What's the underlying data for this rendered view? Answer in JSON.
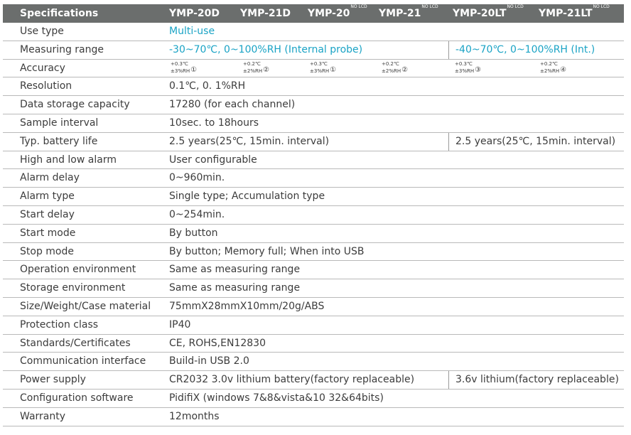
{
  "header": {
    "title": "Specifications",
    "models": [
      "YMP-20D",
      "YMP-21D",
      "YMP-20",
      "YMP-21",
      "YMP-20LT",
      "YMP-21LT"
    ],
    "model_notes": [
      "",
      "",
      "NO LCD",
      "NO LCD",
      "NO LCD",
      "NO LCD"
    ]
  },
  "accuracy": [
    {
      "temp": "+0.3℃",
      "rh": "±3%RH",
      "note": "①"
    },
    {
      "temp": "+0.2℃",
      "rh": "±2%RH",
      "note": "②"
    },
    {
      "temp": "+0.3℃",
      "rh": "±3%RH",
      "note": "①"
    },
    {
      "temp": "+0.2℃",
      "rh": "±2%RH",
      "note": "②"
    },
    {
      "temp": "+0.3℃",
      "rh": "±3%RH",
      "note": "③"
    },
    {
      "temp": "+0.2℃",
      "rh": "±2%RH",
      "note": "④"
    }
  ],
  "rows": [
    {
      "label": "Use type",
      "value": "Multi-use",
      "value2": ""
    },
    {
      "label": "Measuring range",
      "value": "-30~70℃, 0~100%RH (Internal probe)",
      "value2": "-40~70℃, 0~100%RH (Int.)"
    },
    {
      "label": "Accuracy",
      "value": "",
      "value2": ""
    },
    {
      "label": "Resolution",
      "value": "0.1℃, 0. 1%RH",
      "value2": ""
    },
    {
      "label": "Data storage capacity",
      "value": "17280 (for each channel)",
      "value2": ""
    },
    {
      "label": "Sample interval",
      "value": "10sec. to 18hours",
      "value2": ""
    },
    {
      "label": "Typ. battery life",
      "value": "2.5 years(25℃, 15min. interval)",
      "value2": "2.5 years(25℃, 15min. interval)"
    },
    {
      "label": "High and low alarm",
      "value": "User configurable",
      "value2": ""
    },
    {
      "label": "Alarm delay",
      "value": "0~960min.",
      "value2": ""
    },
    {
      "label": "Alarm type",
      "value": "Single type; Accumulation type",
      "value2": ""
    },
    {
      "label": "Start delay",
      "value": "0~254min.",
      "value2": ""
    },
    {
      "label": "Start mode",
      "value": "By button",
      "value2": ""
    },
    {
      "label": "Stop mode",
      "value": "By button; Memory full; When into USB",
      "value2": ""
    },
    {
      "label": "Operation environment",
      "value": "Same as measuring range",
      "value2": ""
    },
    {
      "label": "Storage environment",
      "value": "Same as measuring range",
      "value2": ""
    },
    {
      "label": "Size/Weight/Case material",
      "value": "75mmX28mmX10mm/20g/ABS",
      "value2": ""
    },
    {
      "label": "Protection class",
      "value": "IP40",
      "value2": ""
    },
    {
      "label": "Standards/Certificates",
      "value": "CE, ROHS,EN12830",
      "value2": ""
    },
    {
      "label": "Communication interface",
      "value": "Build-in USB 2.0",
      "value2": ""
    },
    {
      "label": "Power supply",
      "value": "CR2032 3.0v lithium battery(factory replaceable)",
      "value2": "3.6v lithium(factory replaceable)"
    },
    {
      "label": "Configuration software",
      "value": "PidifiX (windows 7&8&vista&10 32&64bits)",
      "value2": ""
    },
    {
      "label": "Warranty",
      "value": "12months",
      "value2": ""
    }
  ],
  "colors": {
    "header_bg": "#6b6e6d",
    "accent": "#1aa3c5",
    "text": "#3c3c3c"
  }
}
